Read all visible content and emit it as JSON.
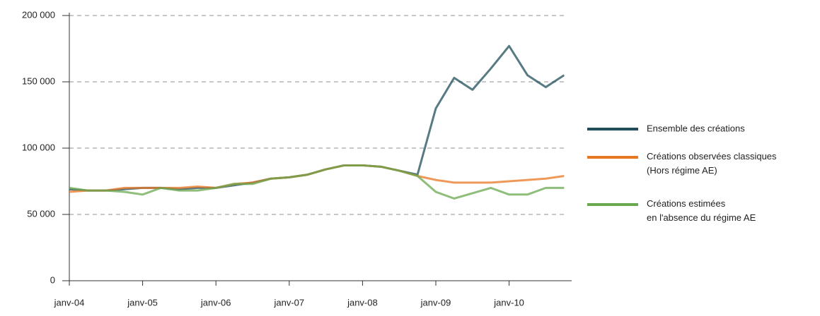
{
  "chart_data": {
    "type": "line",
    "categories": [
      "janv-04",
      null,
      null,
      null,
      "janv-05",
      null,
      null,
      null,
      "janv-06",
      null,
      null,
      null,
      "janv-07",
      null,
      null,
      null,
      "janv-08",
      null,
      null,
      null,
      "janv-09",
      null,
      null,
      null,
      "janv-10",
      null,
      null,
      null
    ],
    "series": [
      {
        "name": "Ensemble des créations",
        "color": "#1f4e5a",
        "values": [
          69000,
          68000,
          68000,
          69000,
          70000,
          70000,
          69000,
          70000,
          70000,
          72000,
          74000,
          77000,
          78000,
          80000,
          84000,
          87000,
          87000,
          86000,
          83000,
          80000,
          130000,
          153000,
          144000,
          160000,
          177000,
          155000,
          146000,
          155000
        ]
      },
      {
        "name": "Créations observées classiques (Hors régime AE)",
        "color": "#e87722",
        "values": [
          67000,
          68000,
          68000,
          70000,
          70000,
          70000,
          70000,
          71000,
          70000,
          73000,
          74000,
          77000,
          78000,
          80000,
          84000,
          87000,
          87000,
          86000,
          83000,
          79000,
          76000,
          74000,
          74000,
          74000,
          75000,
          76000,
          77000,
          79000
        ]
      },
      {
        "name": "Créations estimées en l'absence du régime AE",
        "color": "#6aa84f",
        "values": [
          70000,
          68000,
          68000,
          67000,
          65000,
          70000,
          68000,
          68000,
          70000,
          73000,
          73000,
          77000,
          78000,
          80000,
          84000,
          87000,
          87000,
          86000,
          83000,
          79000,
          67000,
          62000,
          66000,
          70000,
          65000,
          65000,
          70000,
          70000
        ]
      }
    ],
    "ylim": [
      0,
      200000
    ],
    "yticks": [
      0,
      {
        "value": 50000,
        "label": "50 000"
      },
      {
        "value": 100000,
        "label": "100 000"
      },
      {
        "value": 150000,
        "label": "150 000"
      },
      {
        "value": 200000,
        "label": "200 000"
      }
    ],
    "grid": true,
    "legend": "right"
  }
}
